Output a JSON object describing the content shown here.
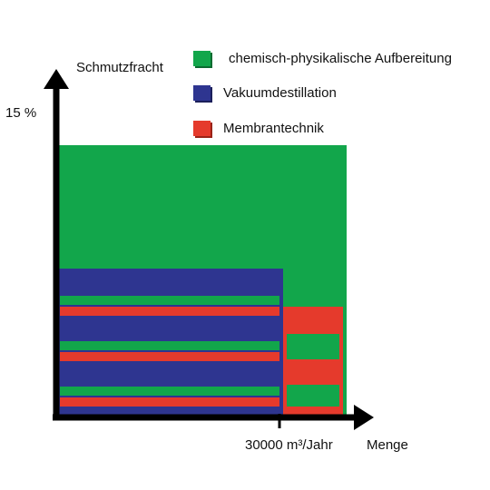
{
  "axes": {
    "y_label": "Schmutzfracht",
    "y_tick": "15 %",
    "x_tick": "30000 m³/Jahr",
    "x_label": "Menge"
  },
  "legend": [
    {
      "label": "chemisch-physikalische Aufbereitung",
      "color": "#12a64b"
    },
    {
      "label": "Vakuumdestillation",
      "color": "#2e3590"
    },
    {
      "label": "Membrantechnik",
      "color": "#e53a2c"
    }
  ],
  "colors": {
    "green": "#12a64b",
    "blue": "#2e3590",
    "red": "#e53a2c",
    "axis": "#000000"
  }
}
